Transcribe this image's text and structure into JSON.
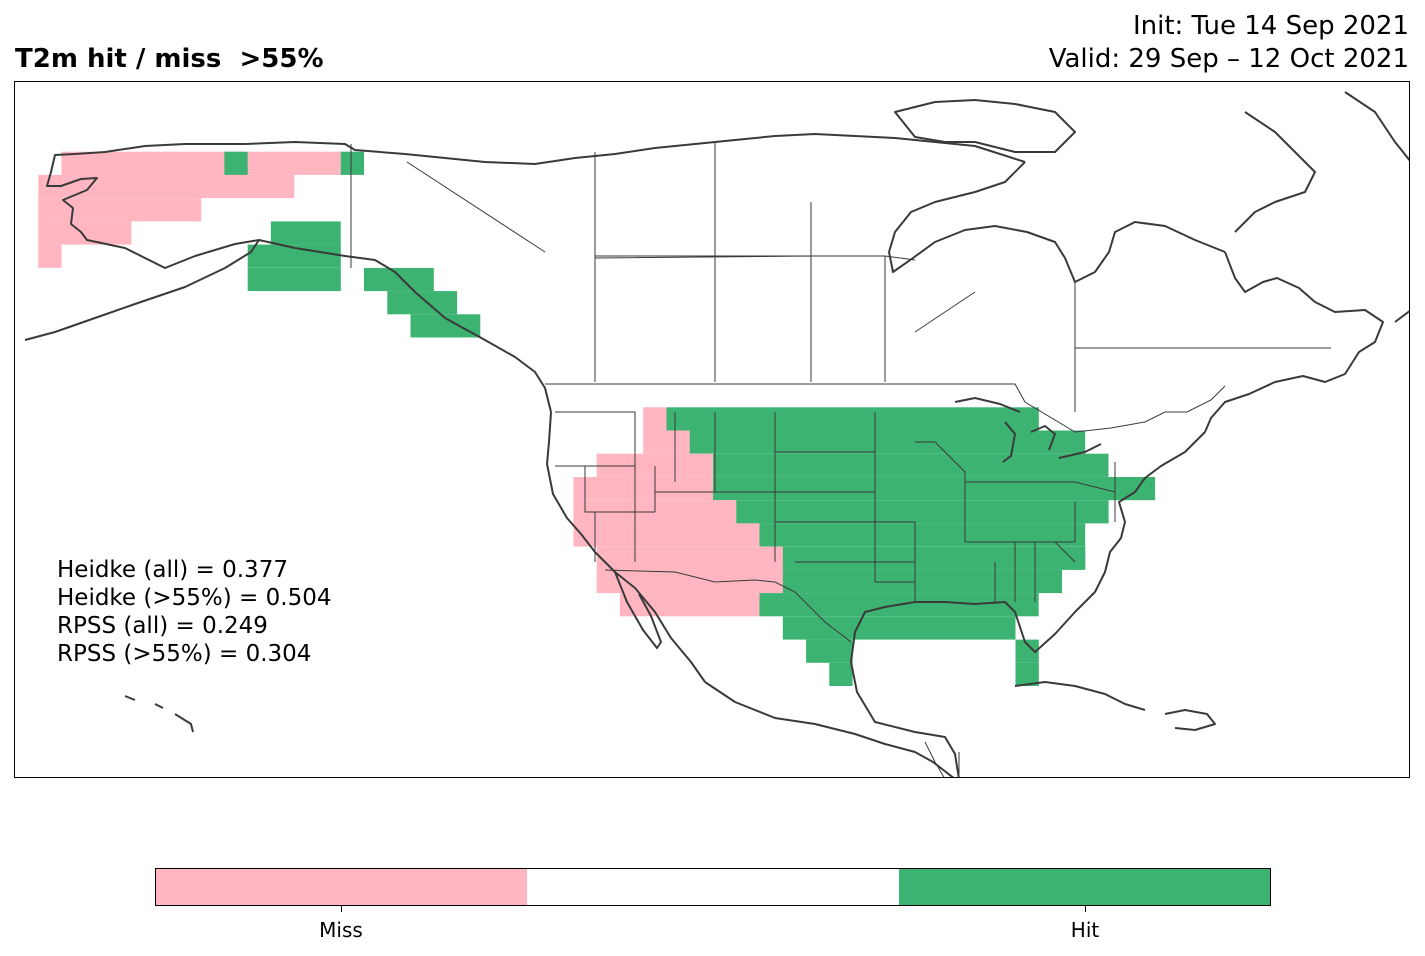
{
  "title": "T2m hit / miss  >55%",
  "init": "Init: Tue 14 Sep 2021",
  "valid": "Valid: 29 Sep – 12 Oct 2021",
  "stats": [
    "Heidke (all) = 0.377",
    "Heidke (>55%) = 0.504",
    "RPSS (all) = 0.249",
    "RPSS (>55%) = 0.304"
  ],
  "colorbar": {
    "segments": [
      {
        "label": "Miss",
        "color": "#ffb6c1"
      },
      {
        "label": "",
        "color": "#ffffff"
      },
      {
        "label": "Hit",
        "color": "#3cb371"
      }
    ]
  },
  "grid": {
    "cell_deg": 2,
    "rows": [
      {
        "lat": 70,
        "miss": [
          [
            -164,
            -140
          ]
        ],
        "hit": [
          [
            -150,
            -148
          ],
          [
            -140,
            -138
          ]
        ]
      },
      {
        "lat": 68,
        "miss": [
          [
            -166,
            -144
          ]
        ],
        "hit": []
      },
      {
        "lat": 66,
        "miss": [
          [
            -166,
            -152
          ]
        ],
        "hit": []
      },
      {
        "lat": 64,
        "miss": [
          [
            -166,
            -158
          ]
        ],
        "hit": [
          [
            -146,
            -140
          ]
        ]
      },
      {
        "lat": 62,
        "miss": [
          [
            -166,
            -164
          ]
        ],
        "hit": [
          [
            -148,
            -140
          ]
        ]
      },
      {
        "lat": 60,
        "miss": [],
        "hit": [
          [
            -148,
            -140
          ],
          [
            -138,
            -132
          ]
        ]
      },
      {
        "lat": 58,
        "miss": [],
        "hit": [
          [
            -136,
            -130
          ]
        ]
      },
      {
        "lat": 56,
        "miss": [],
        "hit": [
          [
            -134,
            -128
          ]
        ]
      },
      {
        "lat": 48,
        "miss": [
          [
            -114,
            -112
          ]
        ],
        "hit": [
          [
            -112,
            -80
          ]
        ]
      },
      {
        "lat": 46,
        "miss": [
          [
            -114,
            -110
          ]
        ],
        "hit": [
          [
            -110,
            -76
          ]
        ]
      },
      {
        "lat": 44,
        "miss": [
          [
            -118,
            -108
          ]
        ],
        "hit": [
          [
            -108,
            -74
          ]
        ]
      },
      {
        "lat": 42,
        "miss": [
          [
            -120,
            -108
          ]
        ],
        "hit": [
          [
            -108,
            -70
          ]
        ]
      },
      {
        "lat": 40,
        "miss": [
          [
            -120,
            -106
          ]
        ],
        "hit": [
          [
            -106,
            -74
          ]
        ]
      },
      {
        "lat": 38,
        "miss": [
          [
            -120,
            -104
          ]
        ],
        "hit": [
          [
            -104,
            -76
          ]
        ]
      },
      {
        "lat": 36,
        "miss": [
          [
            -118,
            -102
          ]
        ],
        "hit": [
          [
            -102,
            -76
          ]
        ]
      },
      {
        "lat": 34,
        "miss": [
          [
            -118,
            -102
          ]
        ],
        "hit": [
          [
            -102,
            -78
          ]
        ]
      },
      {
        "lat": 32,
        "miss": [
          [
            -116,
            -104
          ]
        ],
        "hit": [
          [
            -104,
            -80
          ]
        ]
      },
      {
        "lat": 30,
        "miss": [],
        "hit": [
          [
            -102,
            -82
          ]
        ]
      },
      {
        "lat": 28,
        "miss": [],
        "hit": [
          [
            -100,
            -96
          ],
          [
            -82,
            -80
          ]
        ]
      },
      {
        "lat": 26,
        "miss": [],
        "hit": [
          [
            -98,
            -96
          ],
          [
            -82,
            -80
          ]
        ]
      }
    ]
  }
}
